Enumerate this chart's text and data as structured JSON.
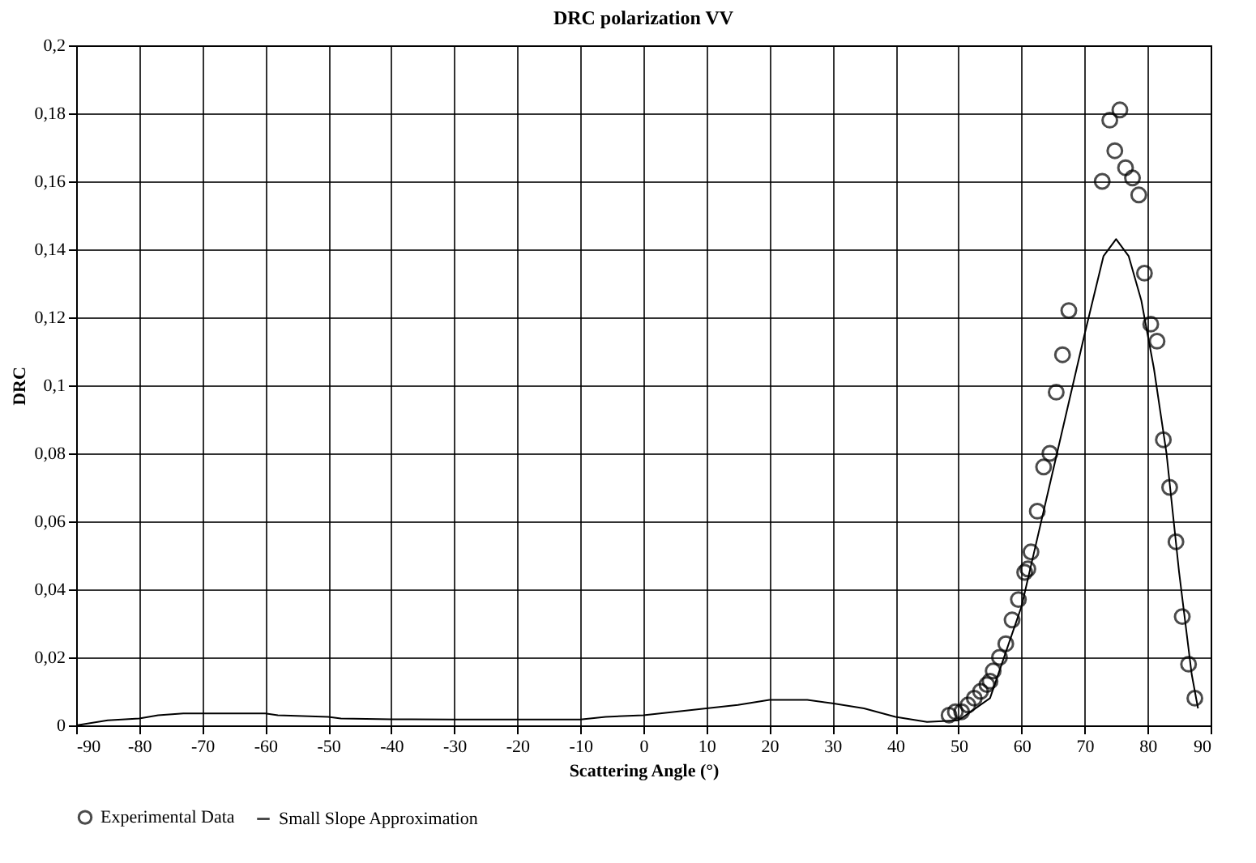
{
  "chart_data": {
    "type": "scatter",
    "title": "DRC polarization VV",
    "xlabel": "Scattering Angle (°)",
    "ylabel": "DRC",
    "xlim": [
      -90,
      90
    ],
    "xticks": [
      -90,
      -80,
      -70,
      -60,
      -50,
      -40,
      -30,
      -20,
      -10,
      0,
      10,
      20,
      30,
      40,
      50,
      60,
      70,
      80,
      90
    ],
    "ylim": [
      0,
      0.2
    ],
    "yticks": [
      0,
      {
        "value": 0.02,
        "label": "0,02"
      },
      {
        "value": 0.04,
        "label": "0,04"
      },
      {
        "value": 0.06,
        "label": "0,06"
      },
      {
        "value": 0.08,
        "label": "0,08"
      },
      {
        "value": 0.1,
        "label": "0,1"
      },
      {
        "value": 0.12,
        "label": "0,12"
      },
      {
        "value": 0.14,
        "label": "0,14"
      },
      {
        "value": 0.16,
        "label": "0,16"
      },
      {
        "value": 0.18,
        "label": "0,18"
      },
      {
        "value": 0.2,
        "label": "0,2"
      }
    ],
    "grid": true,
    "legend": "bottom",
    "series": [
      {
        "name": "Experimental Data",
        "marker": "circle",
        "color": "#000000",
        "x": [
          48.5,
          49.5,
          50.5,
          51.5,
          52.5,
          53.5,
          54.5,
          55,
          55.5,
          56.5,
          57.5,
          58.5,
          59.5,
          60.5,
          61,
          61.5,
          62.5,
          63.5,
          64.5,
          65.5,
          66.5,
          67.5,
          72.8,
          74,
          74.8,
          75.6,
          76.5,
          77.6,
          78.6,
          79.5,
          80.5,
          81.5,
          82.5,
          83.5,
          84.5,
          85.5,
          86.5,
          87.5
        ],
        "values": [
          0.003,
          0.004,
          0.004,
          0.006,
          0.008,
          0.01,
          0.012,
          0.013,
          0.016,
          0.02,
          0.024,
          0.031,
          0.037,
          0.045,
          0.046,
          0.051,
          0.063,
          0.076,
          0.08,
          0.098,
          0.109,
          0.122,
          0.16,
          0.178,
          0.169,
          0.181,
          0.164,
          0.161,
          0.156,
          0.133,
          0.118,
          0.113,
          0.084,
          0.07,
          0.054,
          0.032,
          0.018,
          0.008
        ]
      },
      {
        "name": "Small Slope Approximation",
        "type": "line",
        "marker": "none",
        "line_style": "solid",
        "color": "#000000",
        "x": [
          -90,
          -85,
          -80,
          -77,
          -73,
          -60,
          -58,
          -50,
          -48,
          -40,
          -30,
          -10,
          -6,
          0,
          5,
          10,
          15,
          20,
          26,
          30,
          35,
          40,
          45,
          50,
          55,
          60,
          65,
          70,
          73,
          75,
          77,
          79,
          81,
          83,
          85,
          87,
          88
        ],
        "values": [
          0,
          0.0015,
          0.002,
          0.003,
          0.0035,
          0.0035,
          0.003,
          0.0025,
          0.002,
          0.0018,
          0.0017,
          0.0017,
          0.0025,
          0.003,
          0.004,
          0.005,
          0.006,
          0.0075,
          0.0075,
          0.0065,
          0.005,
          0.0025,
          0.001,
          0.0015,
          0.008,
          0.035,
          0.075,
          0.115,
          0.138,
          0.143,
          0.138,
          0.125,
          0.105,
          0.08,
          0.045,
          0.015,
          0.005
        ]
      }
    ]
  }
}
